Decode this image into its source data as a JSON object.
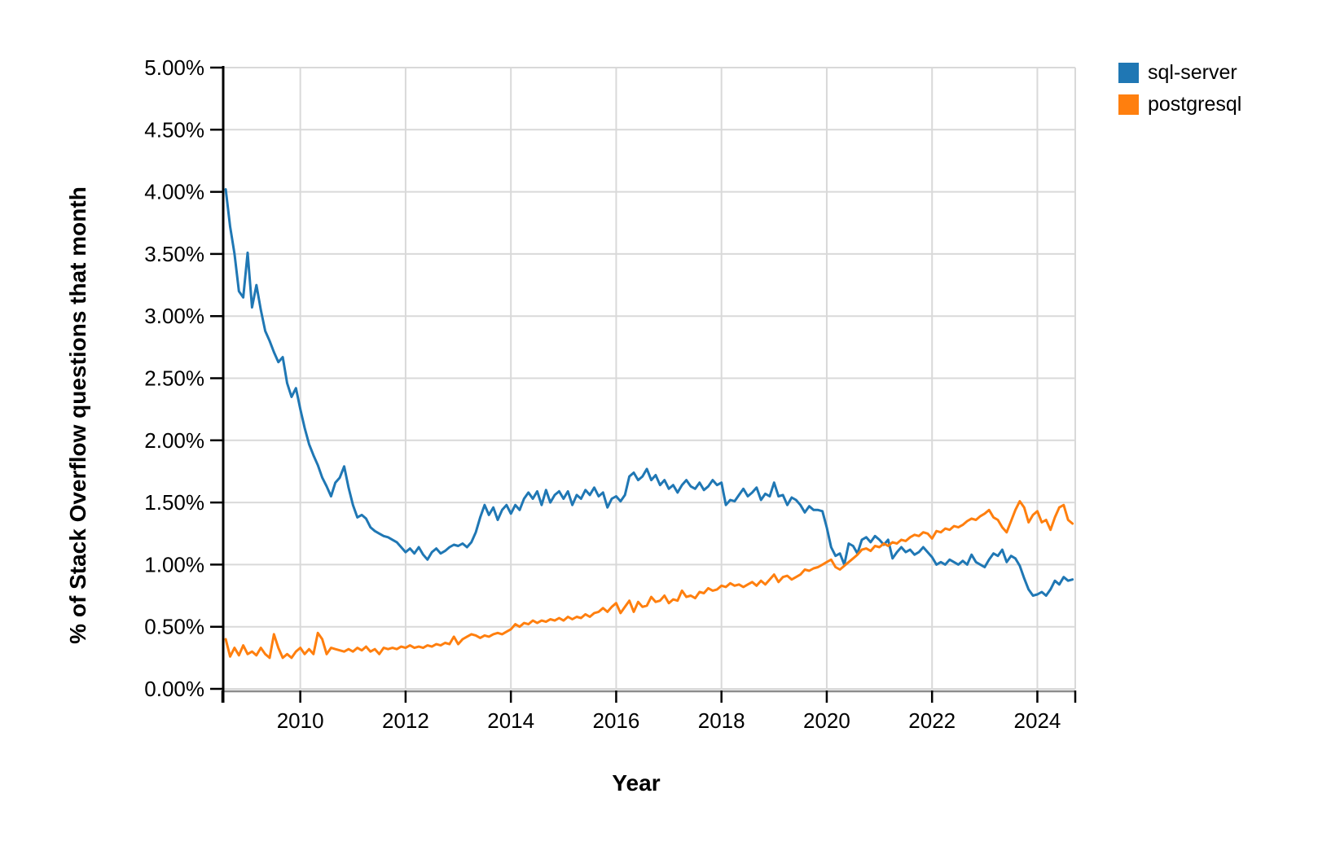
{
  "chart_data": {
    "type": "line",
    "title": "",
    "xlabel": "Year",
    "ylabel": "% of Stack Overflow questions that month",
    "x_start": {
      "year": 2008,
      "month": 8
    },
    "xlim": [
      2008.52,
      2024.72
    ],
    "ylim": [
      0,
      5
    ],
    "grid": true,
    "legend_position": "top-right",
    "x_ticks": {
      "values": [
        2010,
        2012,
        2014,
        2016,
        2018,
        2020,
        2022,
        2024
      ],
      "labels": [
        "2010",
        "2012",
        "2014",
        "2016",
        "2018",
        "2020",
        "2022",
        "2024"
      ]
    },
    "y_ticks": {
      "values": [
        0,
        0.5,
        1,
        1.5,
        2,
        2.5,
        3,
        3.5,
        4,
        4.5,
        5
      ],
      "labels": [
        "0.00%",
        "0.50%",
        "1.00%",
        "1.50%",
        "2.00%",
        "2.50%",
        "3.00%",
        "3.50%",
        "4.00%",
        "4.50%",
        "5.00%"
      ]
    },
    "colors": {
      "grid": "#d9d9d9",
      "axis": "#000000",
      "x_axis_line": "#8c8c8c"
    },
    "series": [
      {
        "name": "sql-server",
        "color": "#1f77b4",
        "values": [
          4.02,
          3.72,
          3.5,
          3.2,
          3.15,
          3.51,
          3.07,
          3.25,
          3.05,
          2.88,
          2.8,
          2.71,
          2.63,
          2.67,
          2.46,
          2.35,
          2.42,
          2.25,
          2.1,
          1.97,
          1.88,
          1.8,
          1.7,
          1.63,
          1.55,
          1.66,
          1.7,
          1.79,
          1.62,
          1.48,
          1.38,
          1.4,
          1.37,
          1.3,
          1.27,
          1.25,
          1.23,
          1.22,
          1.2,
          1.18,
          1.14,
          1.1,
          1.13,
          1.09,
          1.14,
          1.08,
          1.04,
          1.1,
          1.13,
          1.09,
          1.11,
          1.14,
          1.16,
          1.15,
          1.17,
          1.14,
          1.18,
          1.26,
          1.38,
          1.48,
          1.4,
          1.46,
          1.36,
          1.44,
          1.48,
          1.41,
          1.48,
          1.44,
          1.53,
          1.58,
          1.53,
          1.59,
          1.48,
          1.6,
          1.5,
          1.56,
          1.59,
          1.53,
          1.59,
          1.48,
          1.56,
          1.53,
          1.6,
          1.56,
          1.62,
          1.55,
          1.58,
          1.46,
          1.53,
          1.55,
          1.51,
          1.56,
          1.71,
          1.74,
          1.68,
          1.71,
          1.77,
          1.68,
          1.72,
          1.64,
          1.68,
          1.61,
          1.64,
          1.58,
          1.64,
          1.68,
          1.63,
          1.61,
          1.66,
          1.6,
          1.63,
          1.68,
          1.64,
          1.66,
          1.48,
          1.52,
          1.51,
          1.56,
          1.61,
          1.55,
          1.58,
          1.62,
          1.52,
          1.57,
          1.55,
          1.66,
          1.55,
          1.56,
          1.48,
          1.54,
          1.52,
          1.48,
          1.42,
          1.47,
          1.44,
          1.44,
          1.43,
          1.3,
          1.14,
          1.07,
          1.09,
          1.0,
          1.17,
          1.15,
          1.09,
          1.2,
          1.22,
          1.18,
          1.23,
          1.2,
          1.16,
          1.2,
          1.05,
          1.1,
          1.14,
          1.1,
          1.12,
          1.08,
          1.1,
          1.14,
          1.1,
          1.06,
          1.0,
          1.02,
          1.0,
          1.04,
          1.02,
          1.0,
          1.03,
          1.0,
          1.08,
          1.02,
          1.0,
          0.98,
          1.04,
          1.09,
          1.07,
          1.12,
          1.02,
          1.07,
          1.05,
          0.99,
          0.89,
          0.8,
          0.75,
          0.76,
          0.78,
          0.75,
          0.8,
          0.87,
          0.84,
          0.9,
          0.87,
          0.88
        ]
      },
      {
        "name": "postgresql",
        "color": "#ff7f0e",
        "values": [
          0.4,
          0.26,
          0.33,
          0.27,
          0.35,
          0.28,
          0.3,
          0.27,
          0.33,
          0.28,
          0.25,
          0.44,
          0.33,
          0.25,
          0.28,
          0.25,
          0.3,
          0.33,
          0.28,
          0.32,
          0.28,
          0.45,
          0.4,
          0.28,
          0.33,
          0.32,
          0.31,
          0.3,
          0.32,
          0.3,
          0.33,
          0.31,
          0.34,
          0.3,
          0.32,
          0.28,
          0.33,
          0.32,
          0.33,
          0.32,
          0.34,
          0.33,
          0.35,
          0.33,
          0.34,
          0.33,
          0.35,
          0.34,
          0.36,
          0.35,
          0.37,
          0.36,
          0.42,
          0.36,
          0.4,
          0.42,
          0.44,
          0.43,
          0.41,
          0.43,
          0.42,
          0.44,
          0.45,
          0.44,
          0.46,
          0.48,
          0.52,
          0.5,
          0.53,
          0.52,
          0.55,
          0.53,
          0.55,
          0.54,
          0.56,
          0.55,
          0.57,
          0.55,
          0.58,
          0.56,
          0.58,
          0.57,
          0.6,
          0.58,
          0.61,
          0.62,
          0.65,
          0.62,
          0.66,
          0.69,
          0.61,
          0.66,
          0.71,
          0.62,
          0.7,
          0.66,
          0.67,
          0.74,
          0.7,
          0.71,
          0.75,
          0.69,
          0.72,
          0.71,
          0.79,
          0.74,
          0.75,
          0.73,
          0.78,
          0.77,
          0.81,
          0.79,
          0.8,
          0.83,
          0.82,
          0.85,
          0.83,
          0.84,
          0.82,
          0.84,
          0.86,
          0.83,
          0.87,
          0.84,
          0.88,
          0.92,
          0.86,
          0.9,
          0.91,
          0.88,
          0.9,
          0.92,
          0.96,
          0.95,
          0.97,
          0.98,
          1.0,
          1.02,
          1.04,
          0.98,
          0.96,
          0.99,
          1.02,
          1.05,
          1.08,
          1.12,
          1.13,
          1.11,
          1.15,
          1.14,
          1.17,
          1.15,
          1.18,
          1.17,
          1.2,
          1.19,
          1.22,
          1.24,
          1.23,
          1.26,
          1.25,
          1.21,
          1.27,
          1.26,
          1.29,
          1.28,
          1.31,
          1.3,
          1.32,
          1.35,
          1.37,
          1.36,
          1.39,
          1.41,
          1.44,
          1.38,
          1.36,
          1.3,
          1.26,
          1.35,
          1.44,
          1.51,
          1.46,
          1.34,
          1.4,
          1.43,
          1.34,
          1.36,
          1.28,
          1.38,
          1.46,
          1.48,
          1.36,
          1.33
        ]
      }
    ]
  }
}
